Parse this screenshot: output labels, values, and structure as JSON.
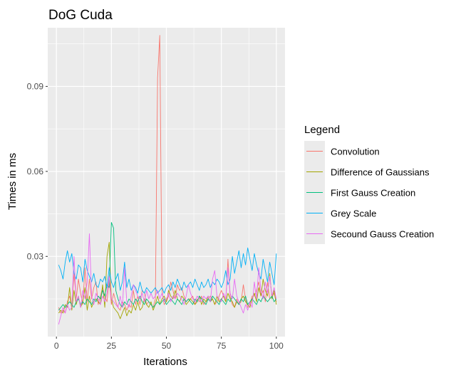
{
  "chart_data": {
    "type": "line",
    "title": "DoG Cuda",
    "xlabel": "Iterations",
    "ylabel": "Times in ms",
    "xlim": [
      -3.95,
      103.95
    ],
    "ylim": [
      0.0017,
      0.1107
    ],
    "xticks": [
      0,
      25,
      50,
      75,
      100
    ],
    "xtick_labels": [
      "0",
      "25",
      "50",
      "75",
      "100"
    ],
    "yticks": [
      0.03,
      0.06,
      0.09
    ],
    "ytick_labels": [
      "0.03",
      "0.06",
      "0.09"
    ],
    "grid": true,
    "legend": {
      "title": "Legend",
      "position": "right"
    },
    "series": [
      {
        "name": "Convolution",
        "color": "#F8766D",
        "x": [
          1,
          2,
          3,
          4,
          5,
          6,
          7,
          8,
          9,
          10,
          11,
          12,
          13,
          14,
          15,
          16,
          17,
          18,
          19,
          20,
          21,
          22,
          23,
          24,
          25,
          26,
          27,
          28,
          29,
          30,
          31,
          32,
          33,
          34,
          35,
          36,
          37,
          38,
          39,
          40,
          41,
          42,
          43,
          44,
          45,
          46,
          47,
          48,
          49,
          50,
          51,
          52,
          53,
          54,
          55,
          56,
          57,
          58,
          59,
          60,
          61,
          62,
          63,
          64,
          65,
          66,
          67,
          68,
          69,
          70,
          71,
          72,
          73,
          74,
          75,
          76,
          77,
          78,
          79,
          80,
          81,
          82,
          83,
          84,
          85,
          86,
          87,
          88,
          89,
          90,
          91,
          92,
          93,
          94,
          95,
          96,
          97,
          98,
          99,
          100
        ],
        "y": [
          0.012,
          0.01,
          0.011,
          0.01,
          0.014,
          0.016,
          0.012,
          0.024,
          0.015,
          0.022,
          0.017,
          0.013,
          0.026,
          0.014,
          0.022,
          0.015,
          0.019,
          0.021,
          0.013,
          0.016,
          0.019,
          0.016,
          0.014,
          0.022,
          0.013,
          0.017,
          0.014,
          0.012,
          0.011,
          0.014,
          0.013,
          0.011,
          0.013,
          0.012,
          0.018,
          0.013,
          0.016,
          0.013,
          0.018,
          0.017,
          0.013,
          0.014,
          0.013,
          0.012,
          0.015,
          0.093,
          0.108,
          0.018,
          0.013,
          0.014,
          0.016,
          0.021,
          0.018,
          0.015,
          0.02,
          0.018,
          0.019,
          0.016,
          0.014,
          0.015,
          0.015,
          0.016,
          0.013,
          0.015,
          0.014,
          0.016,
          0.013,
          0.014,
          0.015,
          0.016,
          0.015,
          0.013,
          0.014,
          0.016,
          0.018,
          0.016,
          0.014,
          0.029,
          0.016,
          0.013,
          0.012,
          0.015,
          0.013,
          0.014,
          0.02,
          0.015,
          0.012,
          0.013,
          0.016,
          0.016,
          0.018,
          0.021,
          0.016,
          0.018,
          0.014,
          0.021,
          0.015,
          0.016,
          0.017,
          0.014
        ]
      },
      {
        "name": "Difference of Gaussians",
        "color": "#A3A500",
        "x": [
          1,
          2,
          3,
          4,
          5,
          6,
          7,
          8,
          9,
          10,
          11,
          12,
          13,
          14,
          15,
          16,
          17,
          18,
          19,
          20,
          21,
          22,
          23,
          24,
          25,
          26,
          27,
          28,
          29,
          30,
          31,
          32,
          33,
          34,
          35,
          36,
          37,
          38,
          39,
          40,
          41,
          42,
          43,
          44,
          45,
          46,
          47,
          48,
          49,
          50,
          51,
          52,
          53,
          54,
          55,
          56,
          57,
          58,
          59,
          60,
          61,
          62,
          63,
          64,
          65,
          66,
          67,
          68,
          69,
          70,
          71,
          72,
          73,
          74,
          75,
          76,
          77,
          78,
          79,
          80,
          81,
          82,
          83,
          84,
          85,
          86,
          87,
          88,
          89,
          90,
          91,
          92,
          93,
          94,
          95,
          96,
          97,
          98,
          99,
          100
        ],
        "y": [
          0.01,
          0.011,
          0.01,
          0.013,
          0.012,
          0.019,
          0.011,
          0.018,
          0.013,
          0.016,
          0.012,
          0.014,
          0.019,
          0.011,
          0.016,
          0.012,
          0.014,
          0.015,
          0.014,
          0.013,
          0.02,
          0.012,
          0.03,
          0.035,
          0.015,
          0.012,
          0.011,
          0.01,
          0.008,
          0.01,
          0.012,
          0.009,
          0.011,
          0.01,
          0.013,
          0.011,
          0.014,
          0.011,
          0.012,
          0.015,
          0.013,
          0.012,
          0.014,
          0.011,
          0.013,
          0.016,
          0.013,
          0.015,
          0.016,
          0.014,
          0.018,
          0.016,
          0.015,
          0.018,
          0.015,
          0.014,
          0.016,
          0.015,
          0.013,
          0.014,
          0.015,
          0.014,
          0.013,
          0.014,
          0.016,
          0.013,
          0.015,
          0.014,
          0.016,
          0.014,
          0.015,
          0.013,
          0.016,
          0.014,
          0.015,
          0.016,
          0.014,
          0.017,
          0.015,
          0.014,
          0.012,
          0.014,
          0.013,
          0.015,
          0.016,
          0.014,
          0.013,
          0.012,
          0.015,
          0.017,
          0.014,
          0.019,
          0.016,
          0.022,
          0.018,
          0.016,
          0.024,
          0.015,
          0.018,
          0.013
        ]
      },
      {
        "name": "First Gauss Creation",
        "color": "#00BF7D",
        "x": [
          1,
          2,
          3,
          4,
          5,
          6,
          7,
          8,
          9,
          10,
          11,
          12,
          13,
          14,
          15,
          16,
          17,
          18,
          19,
          20,
          21,
          22,
          23,
          24,
          25,
          26,
          27,
          28,
          29,
          30,
          31,
          32,
          33,
          34,
          35,
          36,
          37,
          38,
          39,
          40,
          41,
          42,
          43,
          44,
          45,
          46,
          47,
          48,
          49,
          50,
          51,
          52,
          53,
          54,
          55,
          56,
          57,
          58,
          59,
          60,
          61,
          62,
          63,
          64,
          65,
          66,
          67,
          68,
          69,
          70,
          71,
          72,
          73,
          74,
          75,
          76,
          77,
          78,
          79,
          80,
          81,
          82,
          83,
          84,
          85,
          86,
          87,
          88,
          89,
          90,
          91,
          92,
          93,
          94,
          95,
          96,
          97,
          98,
          99,
          100
        ],
        "y": [
          0.011,
          0.012,
          0.013,
          0.012,
          0.013,
          0.014,
          0.013,
          0.012,
          0.014,
          0.015,
          0.013,
          0.014,
          0.013,
          0.015,
          0.014,
          0.013,
          0.015,
          0.014,
          0.016,
          0.015,
          0.018,
          0.016,
          0.02,
          0.019,
          0.042,
          0.04,
          0.018,
          0.015,
          0.013,
          0.012,
          0.014,
          0.013,
          0.015,
          0.014,
          0.013,
          0.015,
          0.014,
          0.016,
          0.014,
          0.013,
          0.015,
          0.014,
          0.013,
          0.012,
          0.013,
          0.014,
          0.013,
          0.014,
          0.015,
          0.013,
          0.014,
          0.015,
          0.014,
          0.013,
          0.015,
          0.014,
          0.013,
          0.015,
          0.014,
          0.015,
          0.014,
          0.013,
          0.015,
          0.014,
          0.016,
          0.015,
          0.014,
          0.013,
          0.015,
          0.014,
          0.016,
          0.015,
          0.014,
          0.013,
          0.015,
          0.014,
          0.013,
          0.015,
          0.014,
          0.016,
          0.015,
          0.014,
          0.013,
          0.015,
          0.014,
          0.016,
          0.013,
          0.014,
          0.015,
          0.014,
          0.013,
          0.015,
          0.014,
          0.016,
          0.015,
          0.014,
          0.015,
          0.016,
          0.014,
          0.015
        ]
      },
      {
        "name": "Grey Scale",
        "color": "#00B0F6",
        "x": [
          1,
          2,
          3,
          4,
          5,
          6,
          7,
          8,
          9,
          10,
          11,
          12,
          13,
          14,
          15,
          16,
          17,
          18,
          19,
          20,
          21,
          22,
          23,
          24,
          25,
          26,
          27,
          28,
          29,
          30,
          31,
          32,
          33,
          34,
          35,
          36,
          37,
          38,
          39,
          40,
          41,
          42,
          43,
          44,
          45,
          46,
          47,
          48,
          49,
          50,
          51,
          52,
          53,
          54,
          55,
          56,
          57,
          58,
          59,
          60,
          61,
          62,
          63,
          64,
          65,
          66,
          67,
          68,
          69,
          70,
          71,
          72,
          73,
          74,
          75,
          76,
          77,
          78,
          79,
          80,
          81,
          82,
          83,
          84,
          85,
          86,
          87,
          88,
          89,
          90,
          91,
          92,
          93,
          94,
          95,
          96,
          97,
          98,
          99,
          100
        ],
        "y": [
          0.027,
          0.025,
          0.022,
          0.028,
          0.032,
          0.028,
          0.031,
          0.024,
          0.022,
          0.027,
          0.026,
          0.021,
          0.029,
          0.025,
          0.023,
          0.021,
          0.024,
          0.02,
          0.019,
          0.022,
          0.021,
          0.023,
          0.019,
          0.026,
          0.021,
          0.019,
          0.022,
          0.024,
          0.018,
          0.021,
          0.028,
          0.019,
          0.022,
          0.018,
          0.02,
          0.019,
          0.017,
          0.021,
          0.018,
          0.017,
          0.019,
          0.018,
          0.017,
          0.018,
          0.019,
          0.017,
          0.018,
          0.019,
          0.017,
          0.019,
          0.02,
          0.018,
          0.021,
          0.019,
          0.022,
          0.02,
          0.018,
          0.021,
          0.019,
          0.02,
          0.021,
          0.019,
          0.022,
          0.02,
          0.018,
          0.021,
          0.019,
          0.02,
          0.022,
          0.019,
          0.021,
          0.02,
          0.022,
          0.021,
          0.019,
          0.021,
          0.025,
          0.02,
          0.022,
          0.03,
          0.024,
          0.028,
          0.032,
          0.026,
          0.031,
          0.027,
          0.033,
          0.029,
          0.025,
          0.031,
          0.027,
          0.024,
          0.022,
          0.029,
          0.025,
          0.021,
          0.028,
          0.024,
          0.02,
          0.031
        ]
      },
      {
        "name": "Secound Gauss Creation",
        "color": "#E76BF3",
        "x": [
          1,
          2,
          3,
          4,
          5,
          6,
          7,
          8,
          9,
          10,
          11,
          12,
          13,
          14,
          15,
          16,
          17,
          18,
          19,
          20,
          21,
          22,
          23,
          24,
          25,
          26,
          27,
          28,
          29,
          30,
          31,
          32,
          33,
          34,
          35,
          36,
          37,
          38,
          39,
          40,
          41,
          42,
          43,
          44,
          45,
          46,
          47,
          48,
          49,
          50,
          51,
          52,
          53,
          54,
          55,
          56,
          57,
          58,
          59,
          60,
          61,
          62,
          63,
          64,
          65,
          66,
          67,
          68,
          69,
          70,
          71,
          72,
          73,
          74,
          75,
          76,
          77,
          78,
          79,
          80,
          81,
          82,
          83,
          84,
          85,
          86,
          87,
          88,
          89,
          90,
          91,
          92,
          93,
          94,
          95,
          96,
          97,
          98,
          99,
          100
        ],
        "y": [
          0.006,
          0.009,
          0.012,
          0.01,
          0.013,
          0.011,
          0.012,
          0.03,
          0.014,
          0.016,
          0.012,
          0.018,
          0.015,
          0.021,
          0.038,
          0.016,
          0.013,
          0.017,
          0.015,
          0.013,
          0.016,
          0.014,
          0.017,
          0.023,
          0.015,
          0.014,
          0.013,
          0.012,
          0.016,
          0.012,
          0.026,
          0.014,
          0.012,
          0.016,
          0.02,
          0.018,
          0.016,
          0.015,
          0.017,
          0.014,
          0.018,
          0.015,
          0.017,
          0.015,
          0.016,
          0.018,
          0.015,
          0.017,
          0.014,
          0.015,
          0.017,
          0.014,
          0.016,
          0.015,
          0.017,
          0.016,
          0.015,
          0.013,
          0.016,
          0.02,
          0.017,
          0.015,
          0.014,
          0.016,
          0.015,
          0.014,
          0.016,
          0.015,
          0.016,
          0.014,
          0.022,
          0.025,
          0.016,
          0.015,
          0.014,
          0.017,
          0.015,
          0.026,
          0.017,
          0.015,
          0.022,
          0.016,
          0.014,
          0.012,
          0.01,
          0.013,
          0.011,
          0.014,
          0.012,
          0.021,
          0.015,
          0.026,
          0.018,
          0.015,
          0.021,
          0.017,
          0.023,
          0.016,
          0.019,
          0.015
        ]
      }
    ]
  }
}
